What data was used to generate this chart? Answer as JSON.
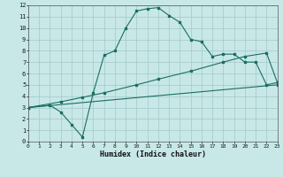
{
  "xlabel": "Humidex (Indice chaleur)",
  "bg_color": "#c8e8e8",
  "grid_color": "#a8cccc",
  "line_color": "#1a6e60",
  "xlim": [
    0,
    23
  ],
  "ylim": [
    0,
    12
  ],
  "xtick_vals": [
    0,
    1,
    2,
    3,
    4,
    5,
    6,
    7,
    8,
    9,
    10,
    11,
    12,
    13,
    14,
    15,
    16,
    17,
    18,
    19,
    20,
    21,
    22,
    23
  ],
  "ytick_vals": [
    0,
    1,
    2,
    3,
    4,
    5,
    6,
    7,
    8,
    9,
    10,
    11,
    12
  ],
  "line1_x": [
    0,
    2,
    3,
    4,
    5,
    6,
    7,
    8,
    9,
    10,
    11,
    12,
    13,
    14,
    15,
    16,
    17,
    18,
    19,
    20,
    21,
    22,
    23
  ],
  "line1_y": [
    3.0,
    3.2,
    2.6,
    1.5,
    0.4,
    4.3,
    7.6,
    8.0,
    10.0,
    11.5,
    11.7,
    11.8,
    11.1,
    10.5,
    9.0,
    8.8,
    7.5,
    7.7,
    7.7,
    7.0,
    7.0,
    5.0,
    5.2
  ],
  "line2_x": [
    0,
    3,
    5,
    7,
    10,
    12,
    15,
    18,
    20,
    22,
    23
  ],
  "line2_y": [
    3.0,
    3.5,
    3.9,
    4.3,
    5.0,
    5.5,
    6.2,
    7.0,
    7.5,
    7.8,
    5.2
  ],
  "line3_x": [
    0,
    23
  ],
  "line3_y": [
    3.0,
    5.0
  ]
}
